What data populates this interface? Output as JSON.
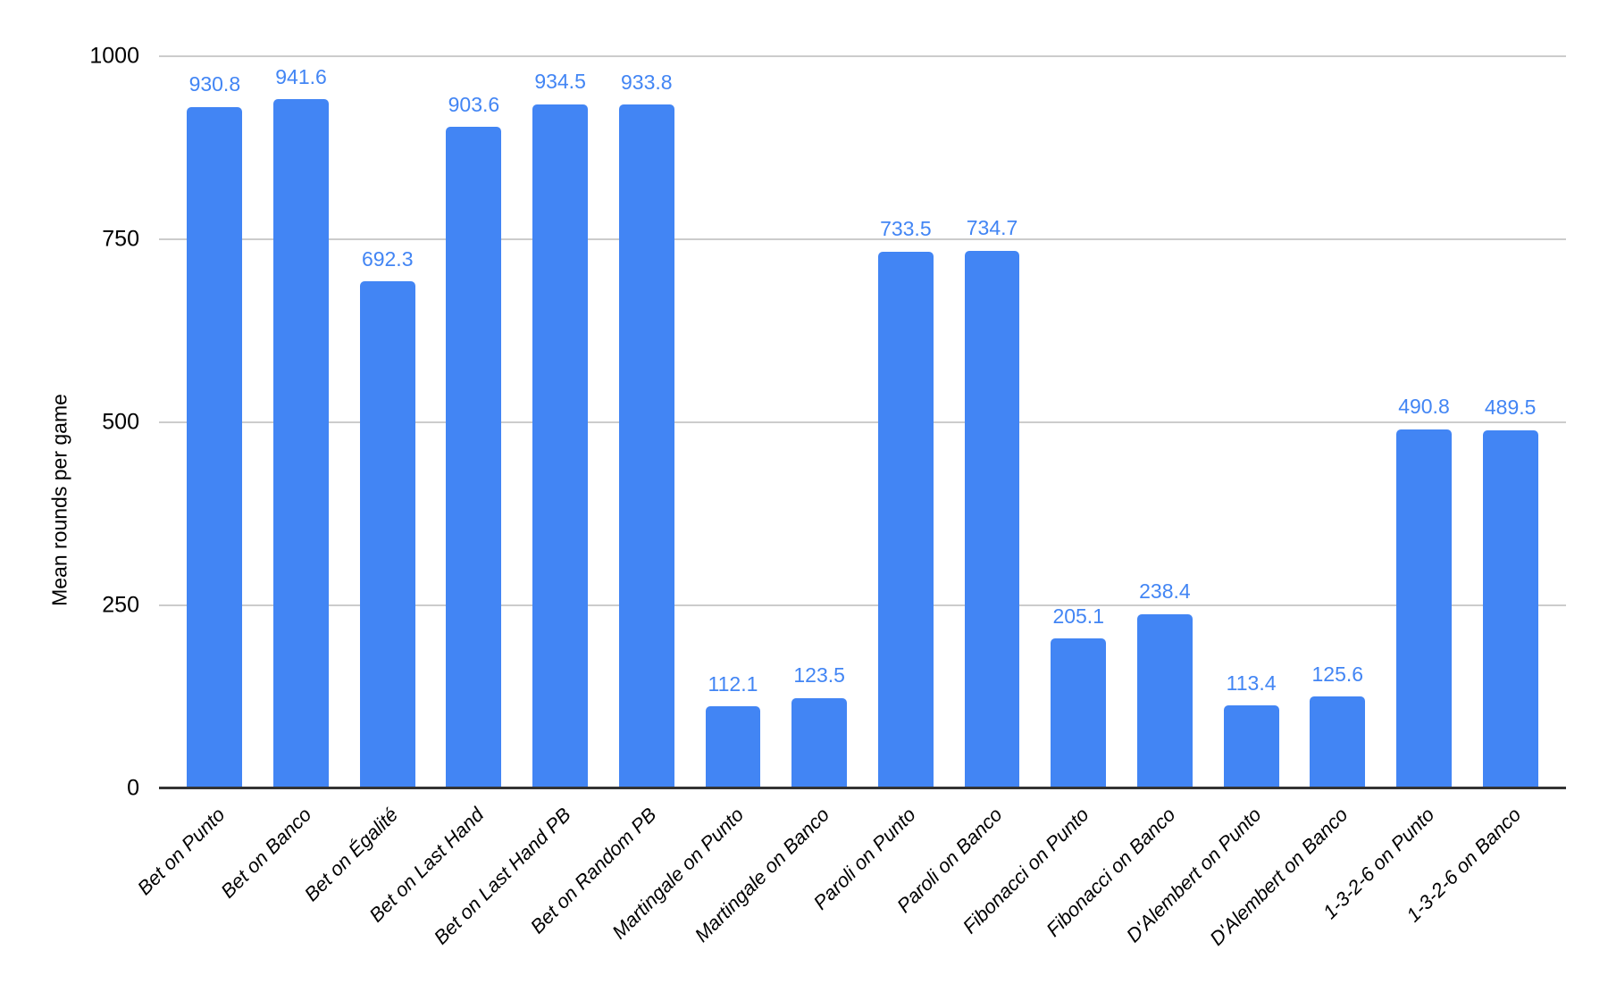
{
  "chart_data": {
    "type": "bar",
    "title": "",
    "xlabel": "",
    "ylabel": "Mean rounds per game",
    "ylim": [
      0,
      1000
    ],
    "yticks": [
      0,
      250,
      500,
      750,
      1000
    ],
    "grid": true,
    "legend_position": "none",
    "bar_color": "#4285f4",
    "value_label_color": "#4285f4",
    "gridline_color": "#cccccc",
    "baseline_color": "#333333",
    "categories": [
      "Bet on Punto",
      "Bet on Banco",
      "Bet on Égalité",
      "Bet on Last Hand",
      "Bet on Last Hand PB",
      "Bet on Random PB",
      "Martingale on Punto",
      "Martingale on Banco",
      "Paroli on Punto",
      "Paroli on Banco",
      "Fibonacci on Punto",
      "Fibonacci on Banco",
      "D'Alembert on Punto",
      "D'Alembert on Banco",
      "1-3-2-6 on Punto",
      "1-3-2-6 on Banco"
    ],
    "values": [
      930.8,
      941.6,
      692.3,
      903.6,
      934.5,
      933.8,
      112.1,
      123.5,
      733.5,
      734.7,
      205.1,
      238.4,
      113.4,
      125.6,
      490.8,
      489.5
    ],
    "value_labels": [
      "930.8",
      "941.6",
      "692.3",
      "903.6",
      "934.5",
      "933.8",
      "112.1",
      "123.5",
      "733.5",
      "734.7",
      "205.1",
      "238.4",
      "113.4",
      "125.6",
      "490.8",
      "489.5"
    ]
  }
}
